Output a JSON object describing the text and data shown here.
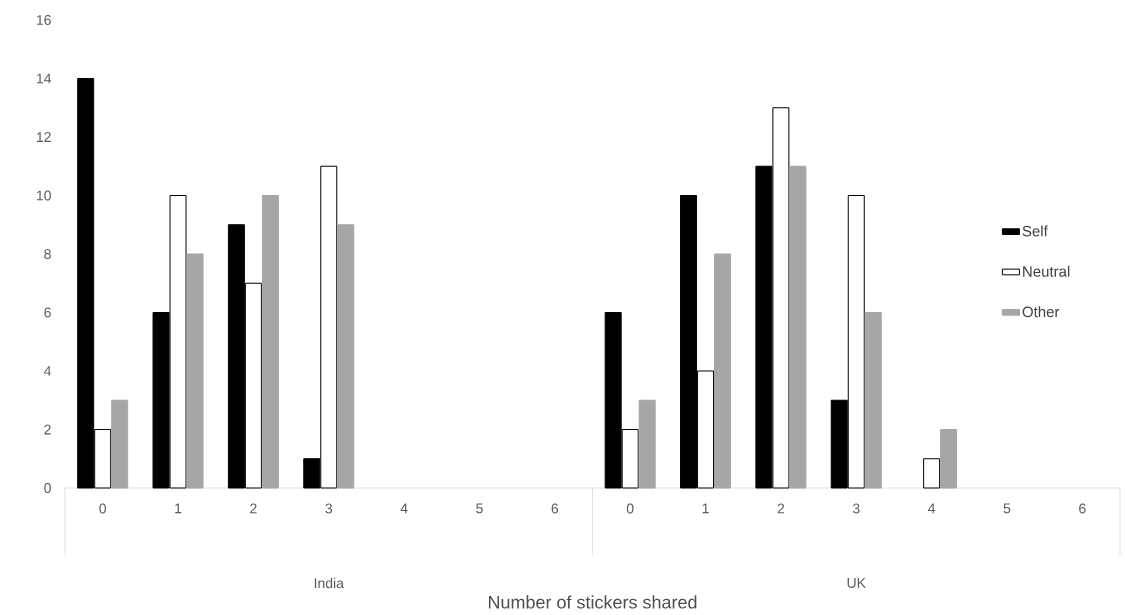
{
  "chart_data": {
    "type": "bar",
    "xlabel": "Number of stickers shared",
    "categories": [
      "0",
      "1",
      "2",
      "3",
      "4",
      "5",
      "6",
      "0",
      "1",
      "2",
      "3",
      "4",
      "5",
      "6"
    ],
    "annotations": [
      "India",
      "UK"
    ],
    "series": [
      {
        "name": "Self",
        "color": "#000000",
        "values": [
          14,
          6,
          9,
          1,
          0,
          0,
          0,
          6,
          10,
          11,
          3,
          0,
          0,
          0
        ]
      },
      {
        "name": "Neutral",
        "color": "#ffffff",
        "values": [
          2,
          10,
          7,
          11,
          0,
          0,
          0,
          2,
          4,
          13,
          10,
          1,
          0,
          0
        ]
      },
      {
        "name": "Other",
        "color": "#a6a6a6",
        "values": [
          3,
          8,
          10,
          9,
          0,
          0,
          0,
          3,
          8,
          11,
          6,
          2,
          0,
          0
        ]
      }
    ],
    "ylim": [
      0,
      16
    ],
    "yticks": [
      0,
      2,
      4,
      6,
      8,
      10,
      12,
      14,
      16
    ],
    "legend": "right"
  }
}
